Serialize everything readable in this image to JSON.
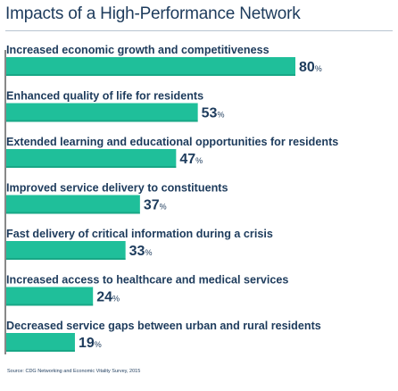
{
  "title": "Impacts of a High-Performance Network",
  "source": "Source: CDG Networking and Economic Vitality Survey, 2015",
  "colors": {
    "bar": "#1fbf9a",
    "bar_edge": "#0c7a62",
    "text": "#1d3b5c",
    "axis": "#3a3a3a"
  },
  "chart_data": {
    "type": "bar",
    "orientation": "horizontal",
    "categories": [
      "Increased economic growth and competitiveness",
      "Enhanced quality of life for residents",
      "Extended learning and educational opportunities for residents",
      "Improved service delivery to constituents",
      "Fast delivery of critical information during a crisis",
      "Increased access to healthcare and medical services",
      "Decreased service gaps between urban and rural residents"
    ],
    "values": [
      80,
      53,
      47,
      37,
      33,
      24,
      19
    ],
    "value_suffix": "%",
    "xlim": [
      0,
      100
    ],
    "grid": false,
    "legend": "none"
  }
}
